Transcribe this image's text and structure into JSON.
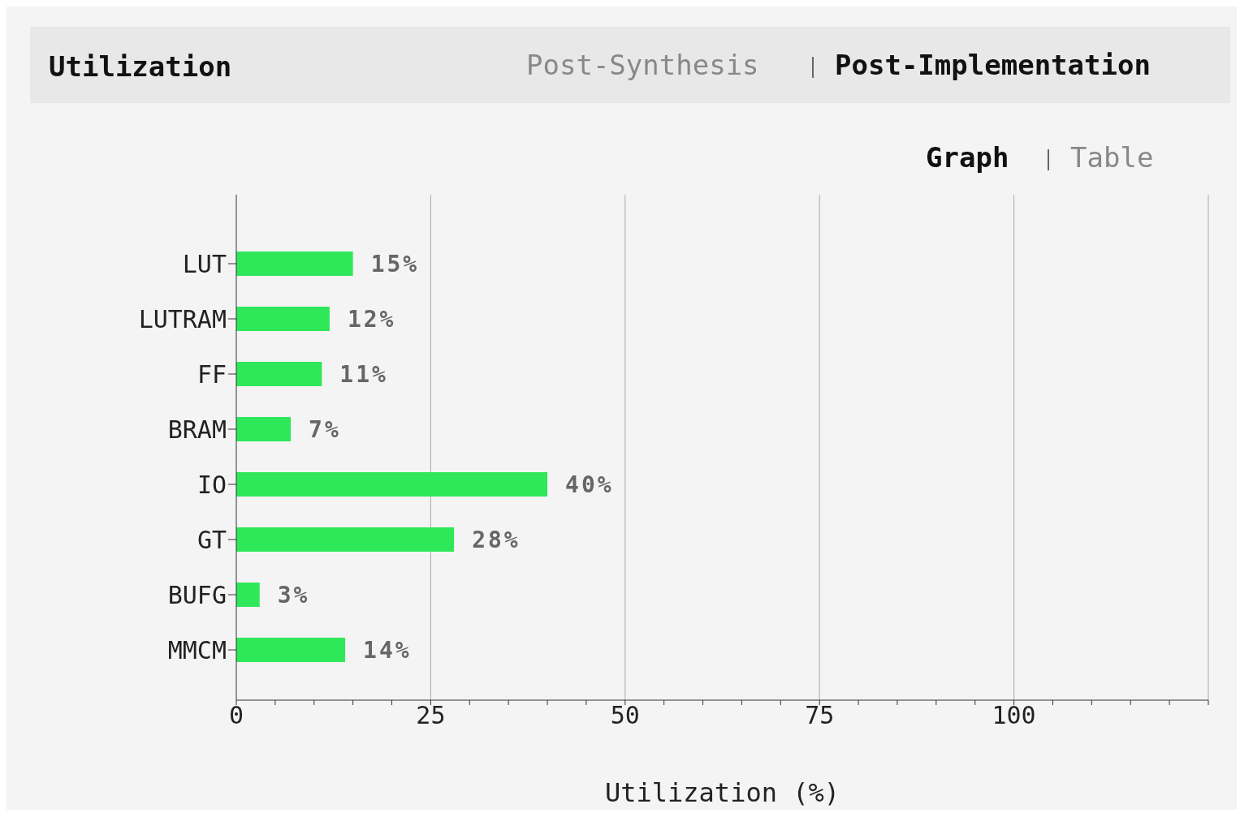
{
  "chart_data": {
    "type": "bar",
    "orientation": "horizontal",
    "title": "Utilization",
    "xlabel": "Utilization (%)",
    "annotations": [
      "Post-Synthesis",
      "Post-Implementation",
      "Graph",
      "Table"
    ],
    "categories": [
      "LUT",
      "LUTRAM",
      "FF",
      "BRAM",
      "IO",
      "GT",
      "BUFG",
      "MMCM"
    ],
    "values": [
      15,
      12,
      11,
      7,
      40,
      28,
      3,
      14
    ],
    "value_labels": [
      "15%",
      "12%",
      "11%",
      "7%",
      "40%",
      "28%",
      "3%",
      "14%"
    ],
    "color": "#2ee85a",
    "xlim": [
      0,
      125
    ],
    "xticks": [
      0,
      {
        "value": 5,
        "label": null
      },
      {
        "value": 10,
        "label": null
      },
      {
        "value": 15,
        "label": null
      },
      {
        "value": 20,
        "label": null
      },
      25,
      {
        "value": 30,
        "label": null
      },
      {
        "value": 35,
        "label": null
      },
      {
        "value": 40,
        "label": null
      },
      {
        "value": 45,
        "label": null
      },
      50,
      {
        "value": 55,
        "label": null
      },
      {
        "value": 60,
        "label": null
      },
      {
        "value": 65,
        "label": null
      },
      {
        "value": 70,
        "label": null
      },
      75,
      {
        "value": 80,
        "label": null
      },
      {
        "value": 85,
        "label": null
      },
      {
        "value": 90,
        "label": null
      },
      {
        "value": 95,
        "label": null
      },
      100,
      {
        "value": 105,
        "label": null
      },
      {
        "value": 110,
        "label": null
      },
      {
        "value": 115,
        "label": null
      },
      {
        "value": 120,
        "label": null
      },
      {
        "value": 125,
        "label": null
      }
    ],
    "grid": "x",
    "legend": false
  }
}
